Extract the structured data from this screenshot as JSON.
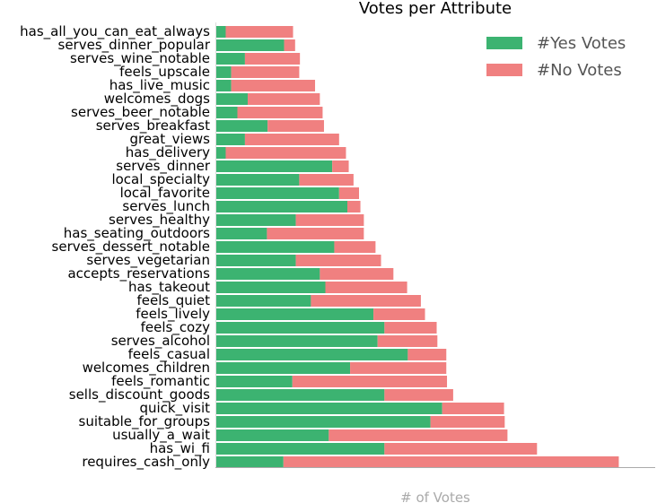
{
  "chart_data": {
    "type": "bar",
    "orientation": "horizontal",
    "stacked": true,
    "title": "Votes per Attribute",
    "xlabel": "# of Votes",
    "ylabel": "",
    "xlim": [
      0,
      64
    ],
    "grid": false,
    "legend_position": "top-right",
    "categories": [
      "has_all_you_can_eat_always",
      "serves_dinner_popular",
      "serves_wine_notable",
      "feels_upscale",
      "has_live_music",
      "welcomes_dogs",
      "serves_beer_notable",
      "serves_breakfast",
      "great_views",
      "has_delivery",
      "serves_dinner",
      "local_specialty",
      "local_favorite",
      "serves_lunch",
      "serves_healthy",
      "has_seating_outdoors",
      "serves_dessert_notable",
      "serves_vegetarian",
      "accepts_reservations",
      "has_takeout",
      "feels_quiet",
      "feels_lively",
      "feels_cozy",
      "serves_alcohol",
      "feels_casual",
      "welcomes_children",
      "feels_romantic",
      "sells_discount_goods",
      "quick_visit",
      "suitable_for_groups",
      "usually_a_wait",
      "has_wi_fi",
      "requires_cash_only"
    ],
    "series": [
      {
        "name": "#Yes Votes",
        "color": "#3cb371",
        "values": [
          1.5,
          10,
          4.3,
          2.3,
          2.3,
          4.7,
          3.2,
          7.6,
          4.3,
          1.5,
          17,
          12.2,
          18,
          19.2,
          11.7,
          7.5,
          17.3,
          11.7,
          15.2,
          16,
          13.9,
          23,
          24.6,
          23.6,
          28,
          19.6,
          11.2,
          24.6,
          33,
          31.3,
          16.5,
          24.6,
          9.9
        ]
      },
      {
        "name": "#No Votes",
        "color": "#f08080",
        "values": [
          9.8,
          1.6,
          8,
          9.9,
          12.2,
          10.5,
          12.4,
          8.2,
          13.7,
          17.5,
          2.4,
          7.9,
          2.9,
          1.9,
          9.9,
          14.1,
          6,
          12.4,
          10.7,
          11.9,
          16,
          7.5,
          7.6,
          8.7,
          5.6,
          14,
          22.5,
          10,
          9,
          10.8,
          26,
          22.2,
          48.8
        ]
      }
    ]
  }
}
